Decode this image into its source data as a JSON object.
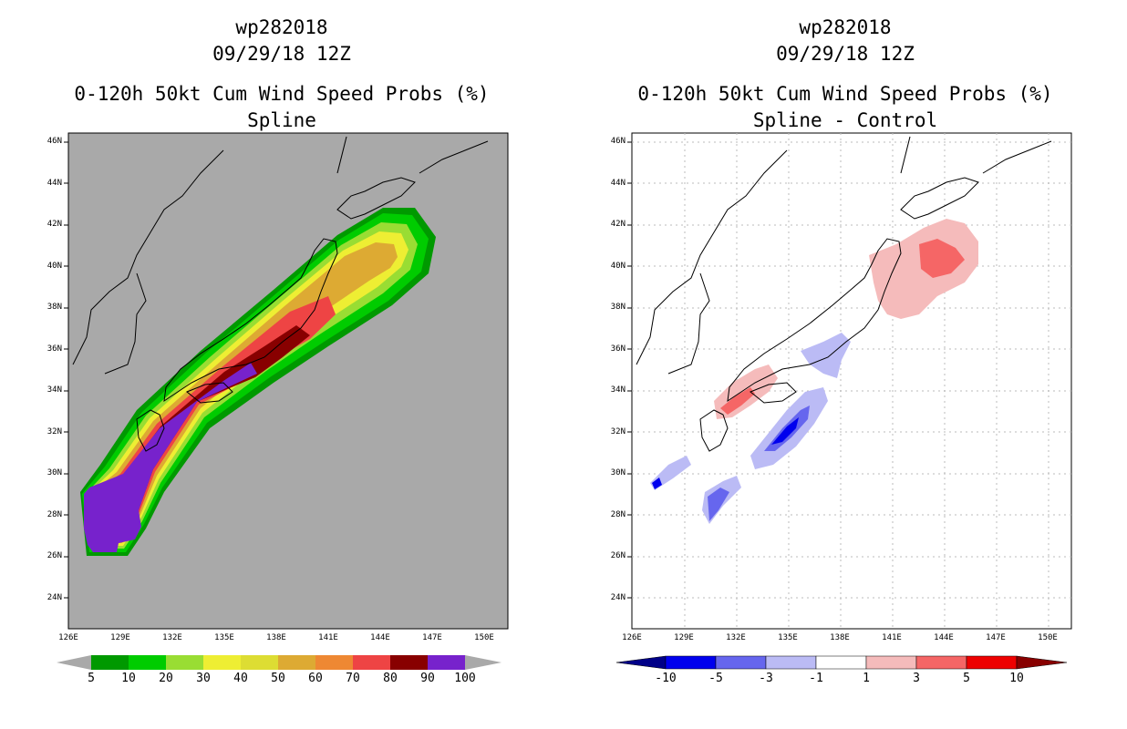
{
  "left_panel": {
    "storm_id": "wp282018",
    "datetime": "09/29/18 12Z",
    "product": "0-120h 50kt Cum Wind Speed Probs (%)",
    "variant": "Spline",
    "background_color": "#a9a9a9",
    "colorbar": {
      "labels": [
        "5",
        "10",
        "20",
        "30",
        "40",
        "50",
        "60",
        "70",
        "80",
        "90",
        "100"
      ],
      "colors": [
        "#009900",
        "#00cc00",
        "#99dd33",
        "#eeee33",
        "#dddd33",
        "#ddaa33",
        "#ee8833",
        "#ee4444",
        "#880000",
        "#7722cc"
      ]
    }
  },
  "right_panel": {
    "storm_id": "wp282018",
    "datetime": "09/29/18 12Z",
    "product": "0-120h 50kt Cum Wind Speed Probs (%)",
    "variant": "Spline - Control",
    "background_color": "#ffffff",
    "colorbar": {
      "labels": [
        "-10",
        "-5",
        "-3",
        "-1",
        "1",
        "3",
        "5",
        "10"
      ],
      "colors": [
        "#000088",
        "#0000ee",
        "#6666ee",
        "#bbbbf5",
        "#ffffff",
        "#f5bbbb",
        "#f56666",
        "#ee0000",
        "#880000"
      ]
    }
  },
  "axes": {
    "lat_labels": [
      "46N",
      "44N",
      "42N",
      "40N",
      "38N",
      "36N",
      "34N",
      "32N",
      "30N",
      "28N",
      "26N",
      "24N"
    ],
    "lon_labels": [
      "126E",
      "129E",
      "132E",
      "135E",
      "138E",
      "141E",
      "144E",
      "147E",
      "150E"
    ]
  }
}
